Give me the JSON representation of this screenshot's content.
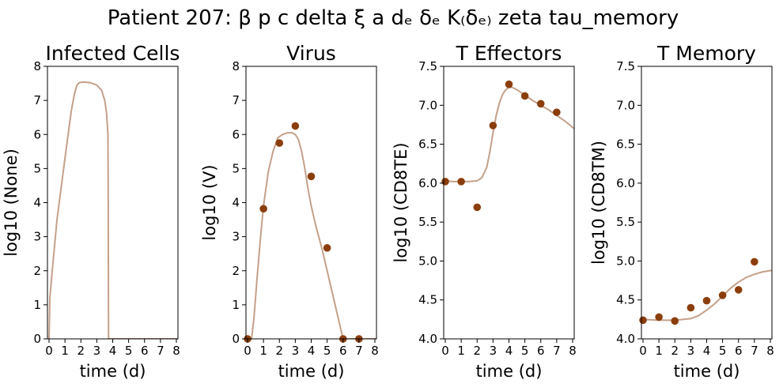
{
  "suptitle": "Patient 207: β p c delta ξ a dₑ δₑ K₍δₑ₎ zeta tau_memory",
  "colors": {
    "model_line": "#c4a08a",
    "data_points": "#8b3e0c",
    "axes": "#000000"
  },
  "chart_data": [
    {
      "type": "line",
      "title": "Infected Cells",
      "xlabel": "time (d)",
      "ylabel": "log10 (None)",
      "xlim": [
        -0.1,
        8.1
      ],
      "ylim": [
        0,
        8
      ],
      "xticks": [
        0,
        1,
        2,
        3,
        4,
        5,
        6,
        7,
        8
      ],
      "yticks": [
        0,
        1,
        2,
        3,
        4,
        5,
        6,
        7,
        8
      ],
      "grid": false,
      "line": {
        "x": [
          0,
          0.05,
          0.2,
          0.5,
          1.0,
          1.4,
          1.6,
          1.75,
          1.9,
          2.0,
          2.2,
          2.6,
          3.0,
          3.3,
          3.5,
          3.62,
          3.7,
          3.72,
          3.73,
          3.74,
          4.5,
          6,
          8.1
        ],
        "y": [
          0,
          1.2,
          2.0,
          3.5,
          5.3,
          6.7,
          7.2,
          7.45,
          7.52,
          7.53,
          7.54,
          7.52,
          7.45,
          7.3,
          7.0,
          6.6,
          6.0,
          4.0,
          1.5,
          0,
          0,
          0,
          0
        ]
      }
    },
    {
      "type": "scatter",
      "title": "Virus",
      "xlabel": "time (d)",
      "ylabel": "log10 (V)",
      "xlim": [
        -0.1,
        8.1
      ],
      "ylim": [
        0,
        8
      ],
      "xticks": [
        0,
        1,
        2,
        3,
        4,
        5,
        6,
        7,
        8
      ],
      "yticks": [
        0,
        1,
        2,
        3,
        4,
        5,
        6,
        7,
        8
      ],
      "grid": false,
      "line": {
        "x": [
          0,
          0.25,
          0.4,
          0.6,
          0.8,
          1.0,
          1.3,
          1.6,
          1.9,
          2.2,
          2.5,
          2.8,
          3.0,
          3.2,
          3.4,
          3.6,
          3.8,
          4.0,
          4.3,
          4.7,
          5.0,
          5.3,
          5.6,
          5.85,
          6.0,
          6.2,
          7.0,
          8.1
        ],
        "y": [
          0,
          0,
          0.6,
          1.8,
          2.9,
          3.9,
          4.9,
          5.5,
          5.9,
          6.0,
          6.05,
          6.05,
          6.0,
          5.85,
          5.5,
          5.0,
          4.4,
          3.9,
          3.3,
          2.6,
          2.0,
          1.4,
          0.8,
          0.3,
          0,
          0,
          0,
          0
        ]
      },
      "points": {
        "x": [
          0,
          1,
          2,
          3,
          4,
          5,
          6,
          7
        ],
        "y": [
          0,
          3.82,
          5.75,
          6.25,
          4.77,
          2.67,
          0,
          0
        ]
      }
    },
    {
      "type": "scatter",
      "title": "T Effectors",
      "xlabel": "time (d)",
      "ylabel": "log10 (CD8TE)",
      "xlim": [
        -0.1,
        8.1
      ],
      "ylim": [
        4.0,
        7.5
      ],
      "xticks": [
        0,
        1,
        2,
        3,
        4,
        5,
        6,
        7,
        8
      ],
      "yticks": [
        "4.0",
        "4.5",
        "5.0",
        "5.5",
        "6.0",
        "6.5",
        "7.0",
        "7.5"
      ],
      "grid": false,
      "line": {
        "x": [
          0,
          0.5,
          1.0,
          1.5,
          2.0,
          2.3,
          2.6,
          2.8,
          3.0,
          3.2,
          3.4,
          3.6,
          3.8,
          4.0,
          4.2,
          4.5,
          5.0,
          5.5,
          6.0,
          6.5,
          7.0,
          7.5,
          8.1
        ],
        "y": [
          6.03,
          6.02,
          6.02,
          6.02,
          6.03,
          6.07,
          6.2,
          6.4,
          6.65,
          6.87,
          7.03,
          7.14,
          7.2,
          7.23,
          7.23,
          7.2,
          7.13,
          7.06,
          7.0,
          6.94,
          6.87,
          6.8,
          6.7
        ]
      },
      "points": {
        "x": [
          0,
          1,
          2,
          3,
          4,
          5,
          6,
          7
        ],
        "y": [
          6.02,
          6.02,
          5.69,
          6.74,
          7.27,
          7.12,
          7.02,
          6.91
        ]
      }
    },
    {
      "type": "scatter",
      "title": "T Memory",
      "xlabel": "time (d)",
      "ylabel": "log10 (CD8TM)",
      "xlim": [
        -0.1,
        8.1
      ],
      "ylim": [
        4.0,
        7.5
      ],
      "xticks": [
        0,
        1,
        2,
        3,
        4,
        5,
        6,
        7,
        8
      ],
      "yticks": [
        "4.0",
        "4.5",
        "5.0",
        "5.5",
        "6.0",
        "6.5",
        "7.0",
        "7.5"
      ],
      "grid": false,
      "line": {
        "x": [
          0,
          1,
          2,
          3,
          3.5,
          4.0,
          4.5,
          5.0,
          5.5,
          6.0,
          6.5,
          7.0,
          7.5,
          8.1
        ],
        "y": [
          4.25,
          4.24,
          4.24,
          4.26,
          4.3,
          4.37,
          4.45,
          4.55,
          4.65,
          4.73,
          4.79,
          4.83,
          4.86,
          4.88
        ]
      },
      "points": {
        "x": [
          0,
          1,
          2,
          3,
          4,
          5,
          6,
          7
        ],
        "y": [
          4.24,
          4.28,
          4.23,
          4.4,
          4.49,
          4.56,
          4.63,
          4.99
        ]
      }
    }
  ]
}
